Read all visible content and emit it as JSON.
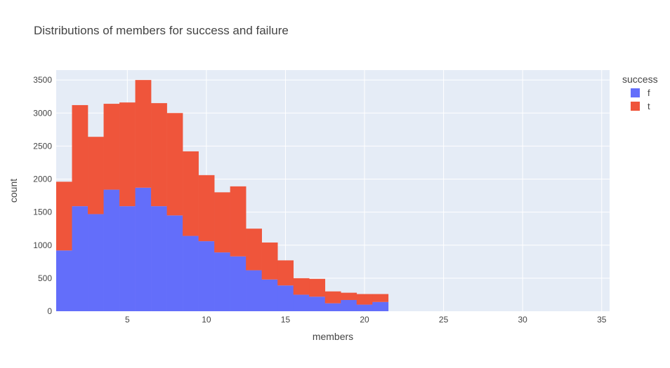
{
  "chart_data": {
    "type": "bar",
    "title": "Distributions of members for success and failure",
    "xlabel": "members",
    "ylabel": "count",
    "xlim": [
      0.5,
      35.5
    ],
    "ylim": [
      0,
      3650
    ],
    "xticks": [
      5,
      10,
      15,
      20,
      25,
      30,
      35
    ],
    "yticks": [
      0,
      500,
      1000,
      1500,
      2000,
      2500,
      3000,
      3500
    ],
    "grid": true,
    "stacked": true,
    "bin_width": 1,
    "x": [
      1,
      2,
      3,
      4,
      5,
      6,
      7,
      8,
      9,
      10,
      11,
      12,
      13,
      14,
      15,
      16,
      17,
      18,
      19,
      20,
      21
    ],
    "legend": {
      "title": "success",
      "placement": "right"
    },
    "series": [
      {
        "name": "f",
        "color": "#636efa",
        "values": [
          920,
          1590,
          1470,
          1840,
          1590,
          1870,
          1590,
          1450,
          1140,
          1060,
          890,
          830,
          620,
          480,
          390,
          250,
          220,
          120,
          170,
          100,
          140
        ]
      },
      {
        "name": "t",
        "color": "#ef553b",
        "values": [
          1040,
          1530,
          1170,
          1300,
          1570,
          1630,
          1560,
          1550,
          1280,
          1000,
          910,
          1060,
          630,
          560,
          380,
          250,
          270,
          180,
          110,
          160,
          120
        ]
      }
    ]
  }
}
